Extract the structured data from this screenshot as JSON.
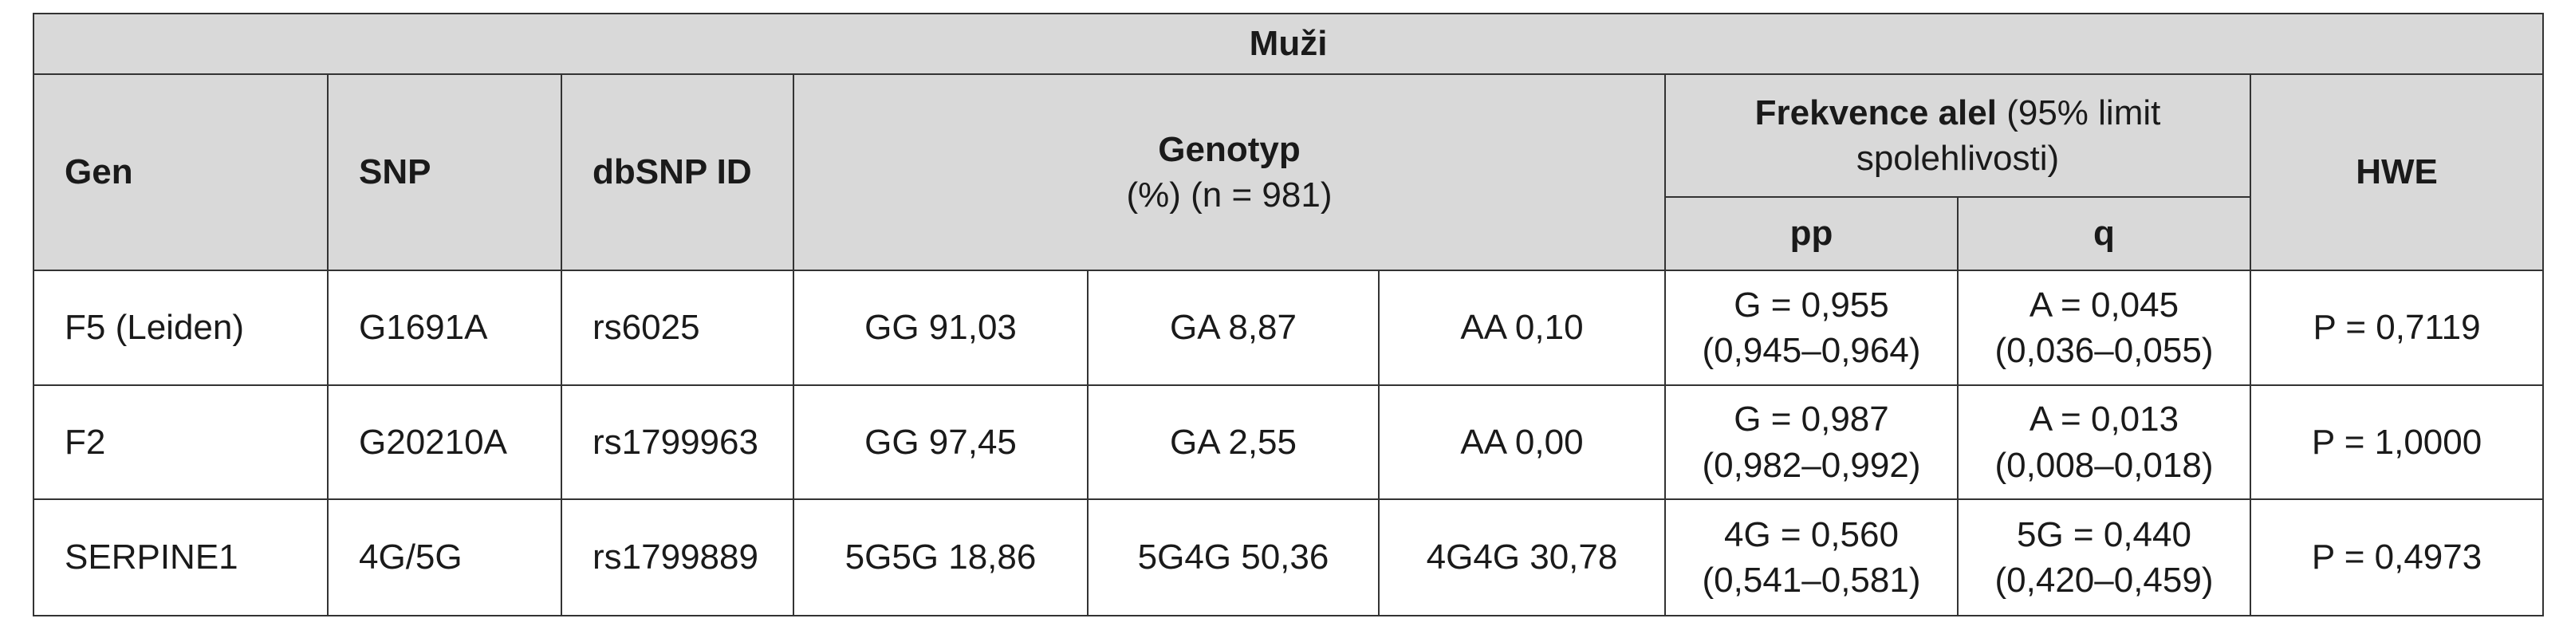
{
  "table": {
    "title": "Muži",
    "header": {
      "gen": "Gen",
      "snp": "SNP",
      "dbsnp": "dbSNP ID",
      "genotyp": "Genotyp",
      "genotyp_sub": "(%) (n = 981)",
      "frekvence": "Frekvence alel",
      "frekvence_sub": "(95% limit spolehlivosti)",
      "pp": "pp",
      "q": "q",
      "hwe": "HWE"
    },
    "rows": [
      [
        "F5 (Leiden)",
        "G1691A",
        "rs6025",
        "GG 91,03",
        "GA 8,87",
        "AA 0,10",
        [
          "G = 0,955",
          "(0,945–0,964)"
        ],
        [
          "A = 0,045",
          "(0,036–0,055)"
        ],
        "P = 0,7119"
      ],
      [
        "F2",
        "G20210A",
        "rs1799963",
        "GG 97,45",
        "GA 2,55",
        "AA 0,00",
        [
          "G = 0,987",
          "(0,982–0,992)"
        ],
        [
          "A = 0,013",
          "(0,008–0,018)"
        ],
        "P = 1,0000"
      ],
      [
        "SERPINE1",
        "4G/5G",
        "rs1799889",
        "5G5G 18,86",
        "5G4G 50,36",
        "4G4G 30,78",
        [
          "4G = 0,560",
          "(0,541–0,581)"
        ],
        [
          "5G = 0,440",
          "(0,420–0,459)"
        ],
        "P = 0,4973"
      ]
    ]
  }
}
